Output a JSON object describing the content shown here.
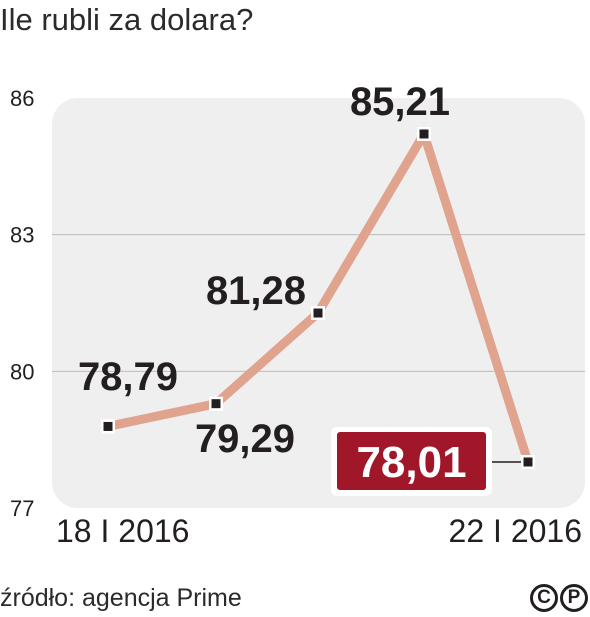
{
  "title": "Ile rubli za dolara?",
  "source": "źródło: agencja Prime",
  "logo": [
    "C",
    "P"
  ],
  "chart_data": {
    "type": "line",
    "title": "Ile rubli za dolara?",
    "x": [
      "18 I 2016",
      "",
      "",
      "",
      "22 I 2016"
    ],
    "x_tick_labels": [
      "18 I 2016",
      "22 I 2016"
    ],
    "series": [
      {
        "values": [
          78.79,
          79.29,
          81.28,
          85.21,
          78.01
        ],
        "color": "#e0a38e"
      }
    ],
    "data_labels": [
      "78,79",
      "79,29",
      "81,28",
      "85,21",
      "78,01"
    ],
    "highlight_index": 4,
    "highlight_color": "#a0172a",
    "y_ticks": [
      "86",
      "83",
      "80",
      "77"
    ],
    "ylim": [
      77,
      86
    ],
    "grid": true
  }
}
